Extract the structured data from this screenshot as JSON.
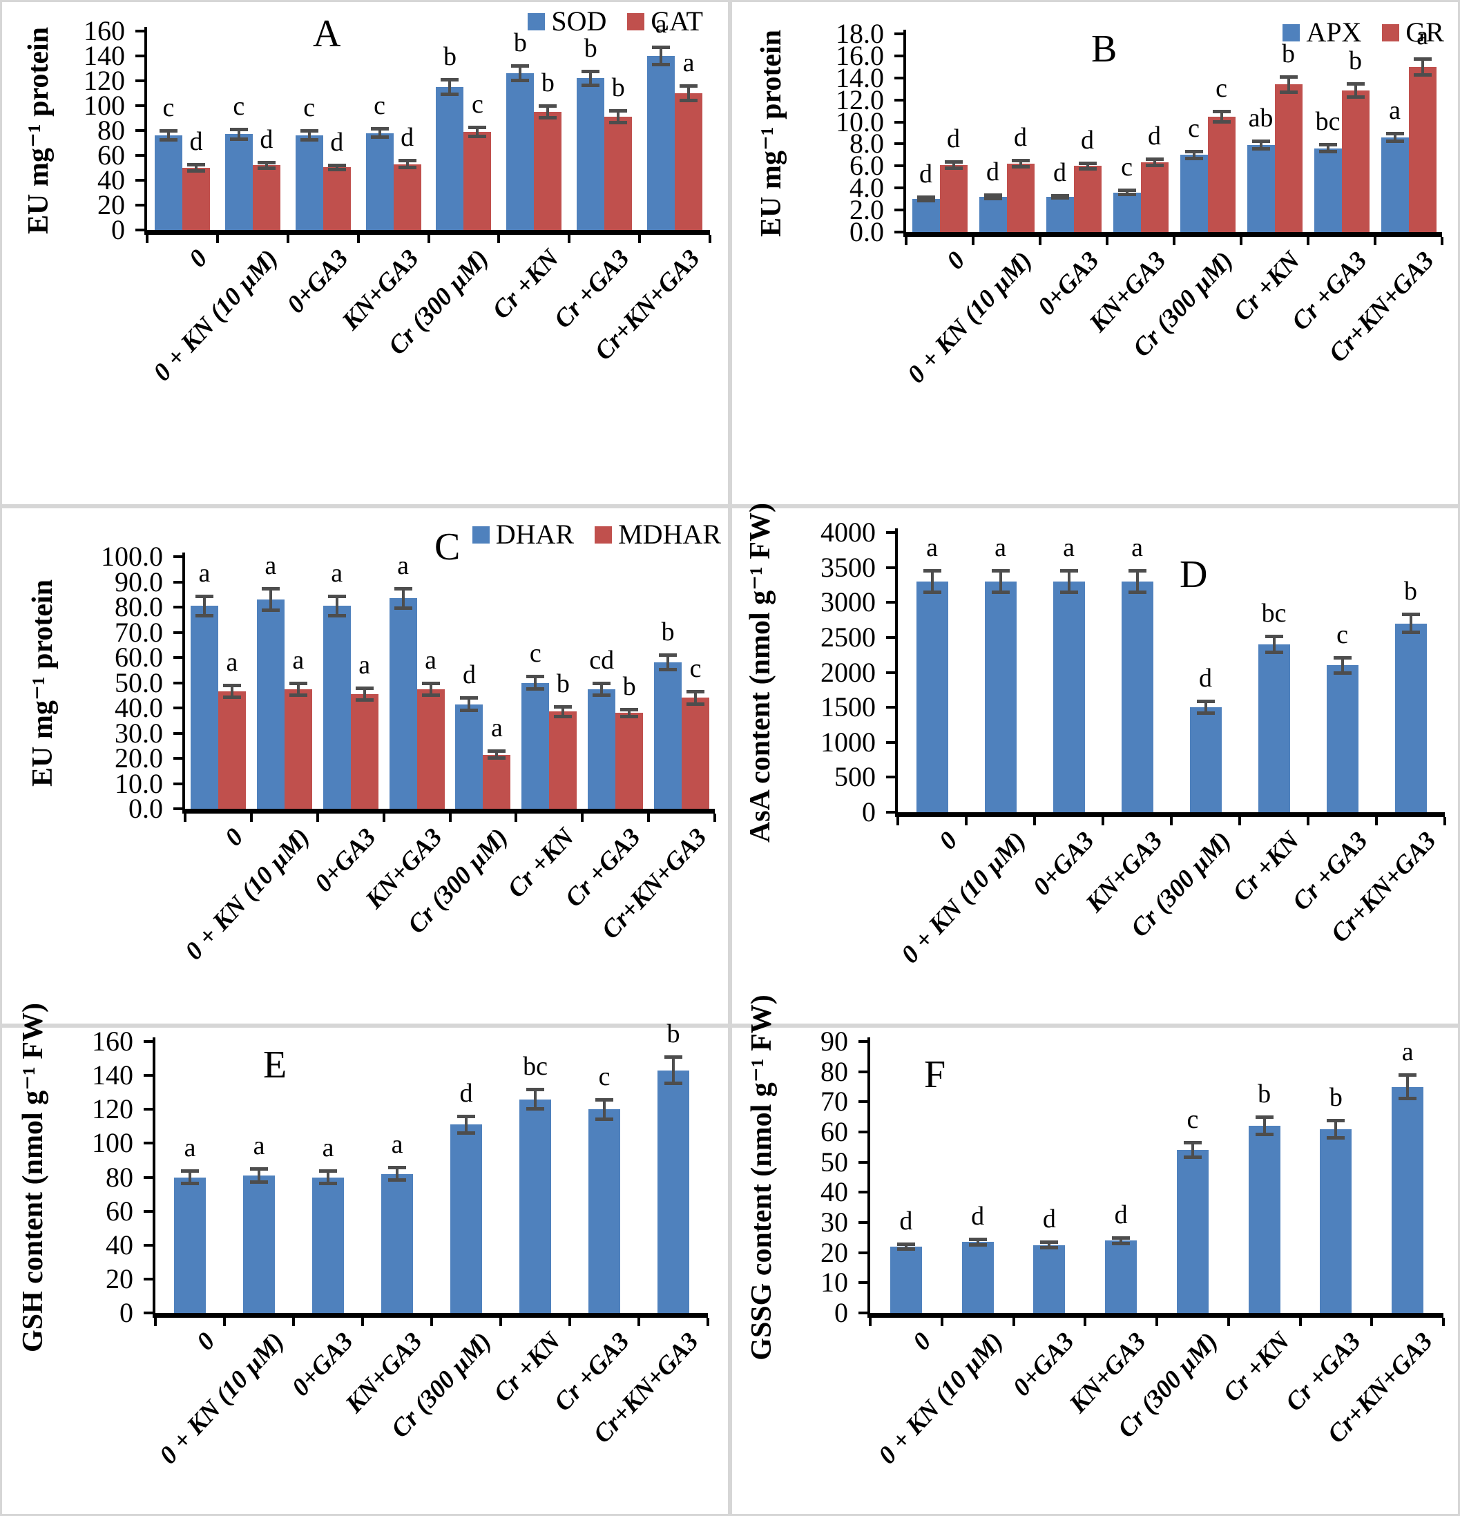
{
  "colors": {
    "bar_blue": "#4f81bd",
    "bar_red": "#c0504d",
    "error_bar": "#4d4d4d",
    "axis": "#000000",
    "panel_border": "#d6d6d6",
    "background": "#ffffff"
  },
  "categories": [
    "0",
    "0 + KN (10 µM)",
    "0+GA3",
    "KN+GA3",
    "Cr (300 µM)",
    "Cr +KN",
    "Cr +GA3",
    "Cr+KN+GA3"
  ],
  "chart_data": [
    {
      "type": "bar",
      "panel_label": "A",
      "ylabel": "EU mg⁻¹ protein",
      "ylim": [
        0,
        160
      ],
      "ystep": 20,
      "yticks": [
        "0",
        "20",
        "40",
        "60",
        "80",
        "100",
        "120",
        "140",
        "160"
      ],
      "grid": false,
      "legend_position": "top-right",
      "series": [
        {
          "name": "SOD",
          "color_key": "bar_blue",
          "values": [
            76,
            77,
            76,
            78,
            115,
            126,
            122,
            140
          ],
          "errors": [
            4,
            4,
            4,
            3.5,
            6,
            6,
            6,
            7
          ],
          "letters": [
            "c",
            "c",
            "c",
            "c",
            "b",
            "b",
            "b",
            "a"
          ]
        },
        {
          "name": "CAT",
          "color_key": "bar_red",
          "values": [
            50,
            52,
            50.5,
            53,
            79,
            95,
            91,
            110
          ],
          "errors": [
            3,
            2.5,
            2,
            3,
            4,
            5,
            5,
            6
          ],
          "letters": [
            "d",
            "d",
            "d",
            "d",
            "c",
            "b",
            "b",
            "a"
          ]
        }
      ]
    },
    {
      "type": "bar",
      "panel_label": "B",
      "ylabel": "EU mg⁻¹ protein",
      "ylim": [
        0,
        18
      ],
      "ystep": 2,
      "yticks": [
        "0.0",
        "2.0",
        "4.0",
        "6.0",
        "8.0",
        "10.0",
        "12.0",
        "14.0",
        "16.0",
        "18.0"
      ],
      "grid": false,
      "legend_position": "top-right",
      "series": [
        {
          "name": "APX",
          "color_key": "bar_blue",
          "values": [
            3.0,
            3.2,
            3.2,
            3.6,
            7.0,
            7.9,
            7.6,
            8.6
          ],
          "errors": [
            0.2,
            0.2,
            0.15,
            0.2,
            0.35,
            0.35,
            0.35,
            0.4
          ],
          "letters": [
            "d",
            "d",
            "d",
            "c",
            "c",
            "ab",
            "bc",
            "a"
          ]
        },
        {
          "name": "GR",
          "color_key": "bar_red",
          "values": [
            6.1,
            6.2,
            6.0,
            6.35,
            10.45,
            13.4,
            12.85,
            15.0
          ],
          "errors": [
            0.3,
            0.3,
            0.3,
            0.3,
            0.5,
            0.7,
            0.65,
            0.75
          ],
          "letters": [
            "d",
            "d",
            "d",
            "d",
            "c",
            "b",
            "b",
            "a"
          ]
        }
      ]
    },
    {
      "type": "bar",
      "panel_label": "C",
      "ylabel": "EU mg⁻¹ protein",
      "ylim": [
        0,
        100
      ],
      "ystep": 10,
      "yticks": [
        "0.0",
        "10.0",
        "20.0",
        "30.0",
        "40.0",
        "50.0",
        "60.0",
        "70.0",
        "80.0",
        "90.0",
        "100.0"
      ],
      "grid": false,
      "legend_position": "top-right",
      "series": [
        {
          "name": "DHAR",
          "color_key": "bar_blue",
          "values": [
            80.5,
            83,
            80.5,
            83.5,
            41.5,
            50,
            47.5,
            58
          ],
          "errors": [
            4,
            4.5,
            4,
            4,
            2.5,
            2.5,
            2.5,
            3
          ],
          "letters": [
            "a",
            "a",
            "a",
            "a",
            "d",
            "c",
            "cd",
            "b"
          ]
        },
        {
          "name": "MDHAR",
          "color_key": "bar_red",
          "values": [
            46.5,
            47.5,
            45.5,
            47.5,
            21.5,
            38.5,
            38,
            44
          ],
          "errors": [
            2.5,
            2.5,
            2.5,
            2.5,
            1.5,
            2,
            1.5,
            2.5
          ],
          "letters": [
            "a",
            "a",
            "a",
            "a",
            "a",
            "b",
            "b",
            "c"
          ]
        }
      ]
    },
    {
      "type": "bar",
      "panel_label": "D",
      "ylabel": "AsA content (nmol g⁻¹ FW)",
      "ylim": [
        0,
        4000
      ],
      "ystep": 500,
      "yticks": [
        "0",
        "500",
        "1000",
        "1500",
        "2000",
        "2500",
        "3000",
        "3500",
        "4000"
      ],
      "grid": false,
      "legend_position": "none",
      "series": [
        {
          "color_key": "bar_blue",
          "values": [
            3300,
            3300,
            3300,
            3300,
            1500,
            2400,
            2100,
            2700
          ],
          "errors": [
            160,
            160,
            160,
            160,
            90,
            120,
            110,
            130
          ],
          "letters": [
            "a",
            "a",
            "a",
            "a",
            "d",
            "bc",
            "c",
            "b"
          ]
        }
      ]
    },
    {
      "type": "bar",
      "panel_label": "E",
      "ylabel": "GSH content (nmol g⁻¹ FW)",
      "ylim": [
        0,
        160
      ],
      "ystep": 20,
      "yticks": [
        "0",
        "20",
        "40",
        "60",
        "80",
        "100",
        "120",
        "140",
        "160"
      ],
      "grid": false,
      "legend_position": "none",
      "series": [
        {
          "color_key": "bar_blue",
          "values": [
            80,
            81,
            80,
            82,
            111,
            126,
            120,
            143
          ],
          "errors": [
            4,
            4,
            4,
            4,
            5,
            6,
            6,
            8
          ],
          "letters": [
            "a",
            "a",
            "a",
            "a",
            "d",
            "bc",
            "c",
            "b"
          ]
        }
      ]
    },
    {
      "type": "bar",
      "panel_label": "F",
      "ylabel": "GSSG content (nmol g⁻¹ FW)",
      "ylim": [
        0,
        90
      ],
      "ystep": 10,
      "yticks": [
        "0",
        "10",
        "20",
        "30",
        "40",
        "50",
        "60",
        "70",
        "80",
        "90"
      ],
      "grid": false,
      "legend_position": "none",
      "series": [
        {
          "color_key": "bar_blue",
          "values": [
            22,
            23.5,
            22.5,
            24,
            54,
            62,
            61,
            75
          ],
          "errors": [
            1,
            1,
            1,
            1,
            2.5,
            3,
            3,
            4
          ],
          "letters": [
            "d",
            "d",
            "d",
            "d",
            "c",
            "b",
            "b",
            "a"
          ]
        }
      ]
    }
  ]
}
